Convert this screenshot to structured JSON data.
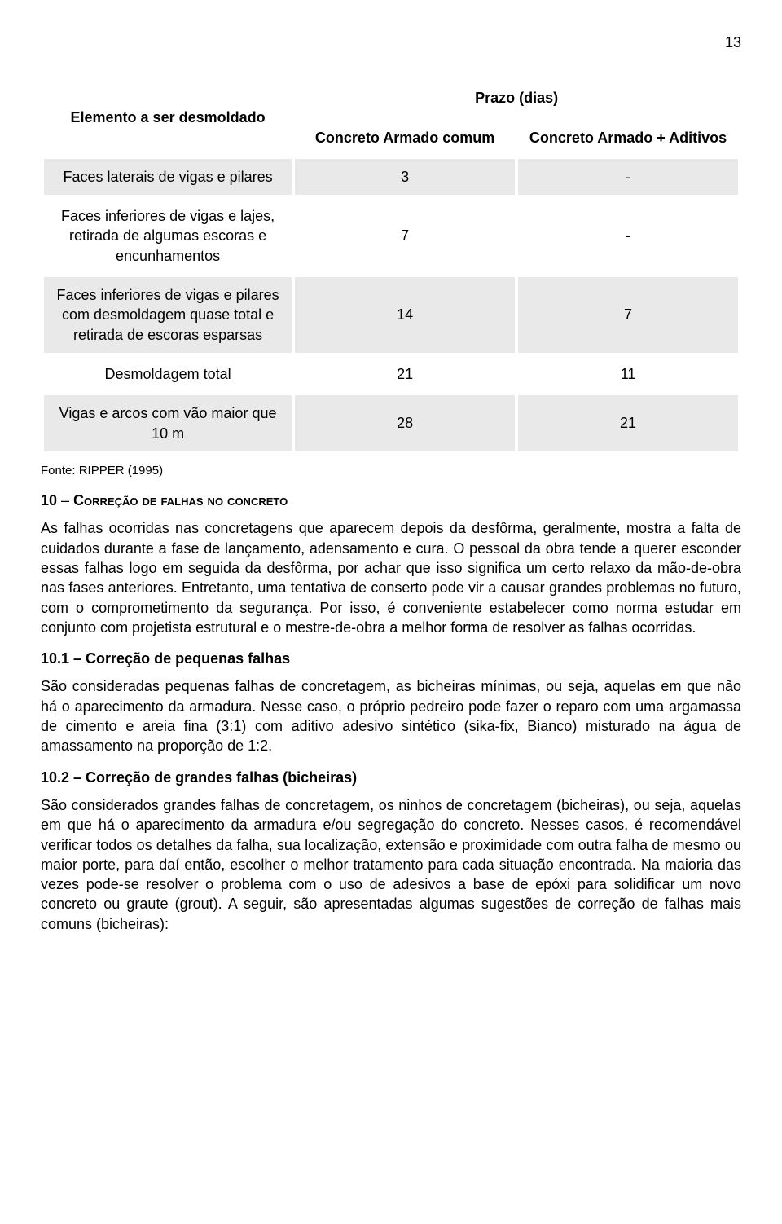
{
  "page_number": "13",
  "table": {
    "header_row": {
      "col0": "Elemento a ser desmoldado",
      "prazo": "Prazo (dias)",
      "col1": "Concreto Armado comum",
      "col2": "Concreto Armado + Aditivos"
    },
    "rows": [
      {
        "label": "Faces laterais de vigas e pilares",
        "v1": "3",
        "v2": "-",
        "shade": true
      },
      {
        "label": "Faces inferiores de vigas e lajes, retirada de algumas escoras e encunhamentos",
        "v1": "7",
        "v2": "-",
        "shade": false
      },
      {
        "label": "Faces inferiores de vigas e pilares com desmoldagem quase total e retirada de escoras esparsas",
        "v1": "14",
        "v2": "7",
        "shade": true
      },
      {
        "label": "Desmoldagem total",
        "v1": "21",
        "v2": "11",
        "shade": false
      },
      {
        "label": "Vigas e arcos com vão maior que 10 m",
        "v1": "28",
        "v2": "21",
        "shade": true
      }
    ]
  },
  "source": "Fonte: RIPPER (1995)",
  "section": {
    "num": "10",
    "sep": " – ",
    "title_caps": "Correção de falhas no concreto"
  },
  "para1": "As falhas ocorridas nas concretagens que aparecem depois da desfôrma, geralmente, mostra a falta de cuidados durante a fase de lançamento, adensamento e cura. O pessoal da obra tende a querer esconder essas falhas logo em seguida da desfôrma, por achar que isso significa um certo relaxo da mão-de-obra nas fases anteriores. Entretanto, uma tentativa de conserto pode vir a causar grandes problemas no futuro, com o comprometimento da segurança. Por isso, é conveniente estabelecer como norma estudar em conjunto com projetista estrutural e o mestre-de-obra a melhor forma de resolver as falhas ocorridas.",
  "sub1": "10.1 – Correção de pequenas falhas",
  "para2": "São consideradas pequenas falhas de concretagem, as bicheiras mínimas, ou seja, aquelas em que não há o aparecimento da armadura. Nesse caso, o próprio pedreiro pode fazer o reparo com uma argamassa de cimento e areia fina (3:1) com aditivo adesivo sintético (sika-fix, Bianco) misturado na água de amassamento na proporção de 1:2.",
  "sub2": "10.2 – Correção de grandes falhas (bicheiras)",
  "para3": "São considerados grandes falhas de concretagem, os ninhos de concretagem (bicheiras), ou seja, aquelas em que há o aparecimento da armadura e/ou segregação do concreto. Nesses casos, é recomendável verificar todos os detalhes da falha, sua localização, extensão e proximidade com outra falha de mesmo ou maior porte, para daí então, escolher o melhor tratamento para cada situação encontrada. Na maioria das vezes pode-se resolver o problema com o uso de adesivos a base de epóxi para solidificar um novo concreto ou graute (grout). A seguir, são apresentadas algumas sugestões de correção de falhas mais comuns (bicheiras):"
}
